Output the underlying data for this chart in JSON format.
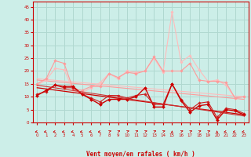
{
  "background_color": "#cceee8",
  "grid_color": "#b0d8d0",
  "xlabel": "Vent moyen/en rafales ( km/h )",
  "xlim": [
    -0.5,
    23.5
  ],
  "ylim": [
    0,
    47
  ],
  "yticks": [
    0,
    5,
    10,
    15,
    20,
    25,
    30,
    35,
    40,
    45
  ],
  "xticks": [
    0,
    1,
    2,
    3,
    4,
    5,
    6,
    7,
    8,
    9,
    10,
    11,
    12,
    13,
    14,
    15,
    16,
    17,
    18,
    19,
    20,
    21,
    22,
    23
  ],
  "series": [
    {
      "x": [
        0,
        1,
        2,
        3,
        4,
        5,
        6,
        7,
        8,
        9,
        10,
        11,
        12,
        13,
        14,
        15,
        16,
        17,
        18,
        19,
        20,
        21,
        22,
        23
      ],
      "y": [
        10.5,
        12.5,
        14.5,
        14.0,
        14.0,
        11.0,
        9.0,
        7.0,
        9.0,
        9.0,
        9.0,
        10.0,
        13.5,
        6.0,
        6.0,
        15.0,
        8.5,
        4.0,
        6.5,
        7.0,
        1.0,
        5.0,
        4.5,
        3.0
      ],
      "color": "#cc0000",
      "linewidth": 1.0,
      "marker": "D",
      "markersize": 2.0,
      "linestyle": "-",
      "zorder": 5
    },
    {
      "x": [
        0,
        1,
        2,
        3,
        4,
        5,
        6,
        7,
        8,
        9,
        10,
        11,
        12,
        13,
        14,
        15,
        16,
        17,
        18,
        19,
        20,
        21,
        22,
        23
      ],
      "y": [
        11.0,
        12.0,
        14.5,
        13.5,
        13.5,
        11.0,
        9.5,
        8.0,
        10.5,
        10.5,
        9.5,
        10.5,
        11.0,
        7.0,
        7.0,
        15.0,
        9.0,
        5.0,
        7.5,
        8.0,
        2.0,
        5.5,
        5.0,
        3.5
      ],
      "color": "#cc2222",
      "linewidth": 0.8,
      "marker": "D",
      "markersize": 1.8,
      "linestyle": "-",
      "zorder": 4
    },
    {
      "x": [
        0,
        1,
        2,
        3,
        4,
        5,
        6,
        7,
        8,
        9,
        10,
        11,
        12,
        13,
        14,
        15,
        16,
        17,
        18,
        19,
        20,
        21,
        22,
        23
      ],
      "y": [
        15.0,
        17.0,
        24.0,
        23.0,
        13.0,
        12.5,
        14.0,
        14.0,
        19.0,
        17.5,
        19.5,
        19.0,
        20.0,
        25.5,
        20.0,
        20.0,
        20.0,
        23.0,
        16.5,
        16.0,
        16.0,
        15.5,
        9.5,
        10.0
      ],
      "color": "#ff9999",
      "linewidth": 0.8,
      "marker": "D",
      "markersize": 1.8,
      "linestyle": "-",
      "zorder": 3
    },
    {
      "x": [
        0,
        1,
        2,
        3,
        4,
        5,
        6,
        7,
        8,
        9,
        10,
        11,
        12,
        13,
        14,
        15,
        16,
        17,
        18,
        19,
        20,
        21,
        22,
        23
      ],
      "y": [
        14.5,
        16.5,
        21.0,
        20.5,
        12.5,
        11.5,
        13.5,
        15.5,
        19.0,
        17.0,
        20.0,
        19.5,
        20.0,
        25.0,
        19.5,
        43.0,
        23.5,
        26.0,
        20.5,
        16.0,
        16.5,
        14.5,
        9.5,
        10.0
      ],
      "color": "#ffbbbb",
      "linewidth": 0.8,
      "marker": "D",
      "markersize": 1.8,
      "linestyle": "-",
      "zorder": 2
    },
    {
      "x": [
        0,
        23
      ],
      "y": [
        13.5,
        3.0
      ],
      "color": "#cc0000",
      "linewidth": 0.9,
      "marker": null,
      "markersize": 0,
      "linestyle": "-",
      "zorder": 6
    },
    {
      "x": [
        0,
        23
      ],
      "y": [
        14.5,
        2.5
      ],
      "color": "#cc3333",
      "linewidth": 0.8,
      "marker": null,
      "markersize": 0,
      "linestyle": "-",
      "zorder": 6
    },
    {
      "x": [
        0,
        23
      ],
      "y": [
        16.5,
        9.0
      ],
      "color": "#ff9999",
      "linewidth": 0.8,
      "marker": null,
      "markersize": 0,
      "linestyle": "-",
      "zorder": 1
    },
    {
      "x": [
        0,
        23
      ],
      "y": [
        17.0,
        10.0
      ],
      "color": "#ffbbbb",
      "linewidth": 0.8,
      "marker": null,
      "markersize": 0,
      "linestyle": "-",
      "zorder": 1
    }
  ],
  "arrow_angles": [
    225,
    225,
    225,
    225,
    225,
    225,
    225,
    225,
    45,
    45,
    45,
    45,
    45,
    45,
    45,
    90,
    45,
    45,
    45,
    45,
    90,
    225,
    225,
    225
  ],
  "xlabel_color": "#cc0000",
  "tick_color": "#cc0000",
  "axis_color": "#cc0000"
}
